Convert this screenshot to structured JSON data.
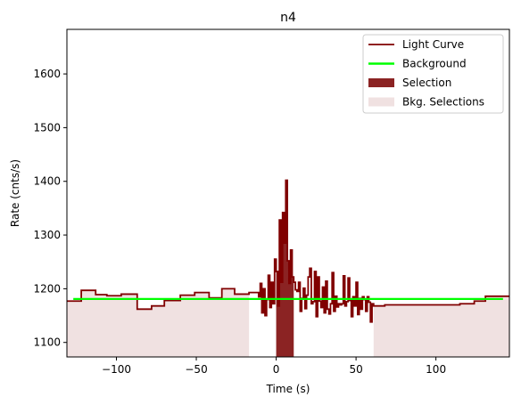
{
  "chart_data": {
    "type": "line",
    "title": "n4",
    "xlabel": "Time (s)",
    "ylabel": "Rate (cnts/s)",
    "xlim": [
      -131,
      146
    ],
    "ylim": [
      1073,
      1683
    ],
    "xticks": [
      -100,
      -50,
      0,
      50,
      100
    ],
    "xtick_labels": [
      "−100",
      "−50",
      "0",
      "50",
      "100"
    ],
    "yticks": [
      1100,
      1200,
      1300,
      1400,
      1500,
      1600
    ],
    "ytick_labels": [
      "1100",
      "1200",
      "1300",
      "1400",
      "1500",
      "1600"
    ],
    "grid": false,
    "legend_position": "top-right",
    "colors": {
      "light_curve": "#800000",
      "background": "#00ff00",
      "selection": "#8b2323",
      "bkg_selection": "#f0e1e1"
    },
    "legend": [
      {
        "label": "Light Curve",
        "kind": "line",
        "color": "#800000"
      },
      {
        "label": "Background",
        "kind": "line",
        "color": "#00ff00"
      },
      {
        "label": "Selection",
        "kind": "patch",
        "color": "#8b2323"
      },
      {
        "label": "Bkg. Selections",
        "kind": "patch",
        "color": "#f0e1e1"
      }
    ],
    "series": [
      {
        "name": "Light Curve",
        "step": "post",
        "x": [
          -131,
          -122,
          -113,
          -106,
          -97,
          -87,
          -78,
          -70,
          -60,
          -51,
          -42,
          -34,
          -26,
          -17,
          -11,
          -10,
          -9,
          -8,
          -7,
          -6,
          -5,
          -4,
          -3,
          -2,
          -1,
          0,
          1,
          2,
          3,
          4,
          5,
          6,
          7,
          8,
          9,
          10,
          11,
          12,
          13,
          14,
          15,
          16,
          17,
          18,
          19,
          20,
          21,
          22,
          23,
          24,
          25,
          26,
          27,
          28,
          29,
          30,
          31,
          32,
          33,
          34,
          35,
          36,
          37,
          38,
          39,
          40,
          41,
          42,
          43,
          44,
          45,
          46,
          47,
          48,
          49,
          50,
          51,
          52,
          53,
          54,
          55,
          56,
          57,
          58,
          59,
          60,
          61,
          68,
          77,
          87,
          96,
          106,
          115,
          124,
          131,
          137,
          146
        ],
        "y": [
          1177,
          1197,
          1189,
          1187,
          1190,
          1162,
          1168,
          1178,
          1188,
          1193,
          1183,
          1200,
          1190,
          1193,
          1185,
          1210,
          1155,
          1200,
          1150,
          1180,
          1225,
          1165,
          1212,
          1172,
          1255,
          1232,
          1168,
          1328,
          1212,
          1342,
          1285,
          1402,
          1252,
          1210,
          1272,
          1222,
          1212,
          1198,
          1195,
          1212,
          1158,
          1182,
          1201,
          1163,
          1188,
          1222,
          1238,
          1172,
          1176,
          1232,
          1148,
          1222,
          1177,
          1165,
          1203,
          1155,
          1214,
          1162,
          1153,
          1172,
          1230,
          1158,
          1186,
          1166,
          1172,
          1170,
          1172,
          1224,
          1168,
          1176,
          1220,
          1178,
          1148,
          1185,
          1168,
          1212,
          1152,
          1182,
          1162,
          1185,
          1180,
          1158,
          1185,
          1175,
          1138,
          1172,
          1168,
          1170,
          1170,
          1170,
          1170,
          1170,
          1172,
          1177,
          1186,
          1186,
          1186
        ]
      },
      {
        "name": "Background",
        "x": [
          -127,
          142
        ],
        "y": [
          1181,
          1181
        ]
      }
    ],
    "selections": [
      {
        "name": "Selection",
        "x": [
          0,
          11
        ]
      }
    ],
    "bkg_selections": [
      {
        "name": "Bkg. Selections",
        "x": [
          -131,
          -17
        ]
      },
      {
        "name": "Bkg. Selections",
        "x": [
          61,
          146
        ]
      }
    ]
  }
}
